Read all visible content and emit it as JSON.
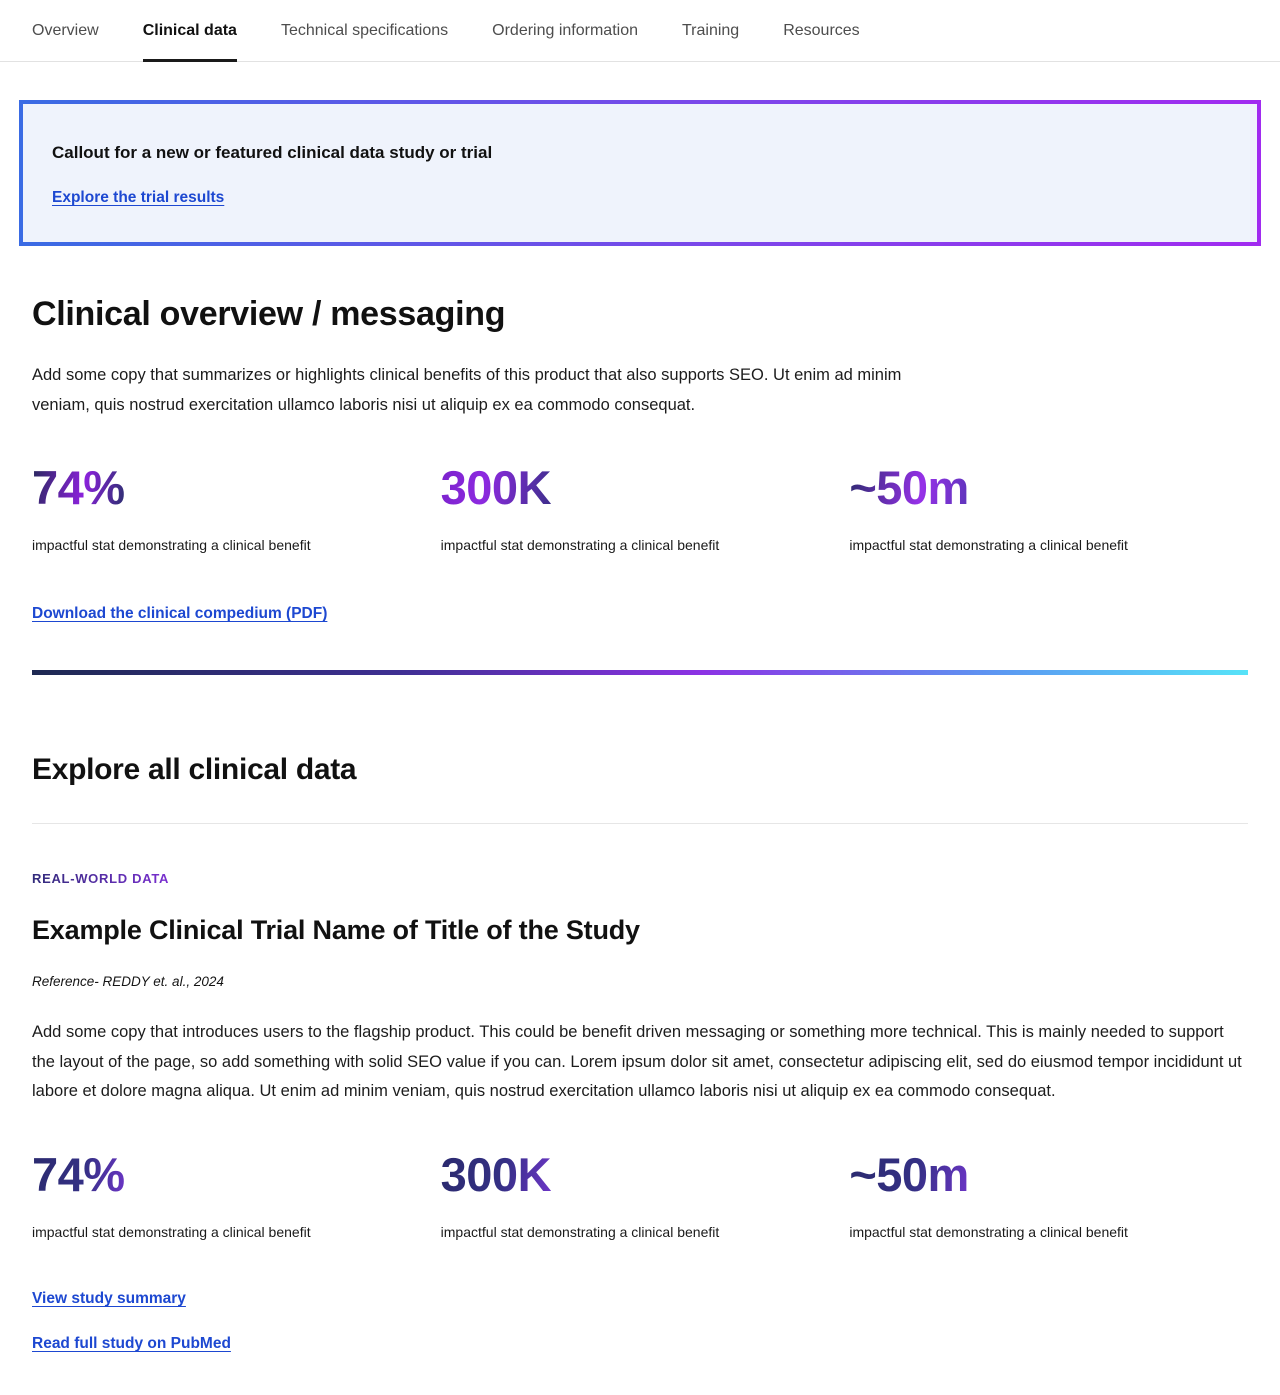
{
  "nav": {
    "tabs": [
      {
        "label": "Overview",
        "active": false
      },
      {
        "label": "Clinical data",
        "active": true
      },
      {
        "label": "Technical specifications",
        "active": false
      },
      {
        "label": "Ordering information",
        "active": false
      },
      {
        "label": "Training",
        "active": false
      },
      {
        "label": "Resources",
        "active": false
      }
    ]
  },
  "callout": {
    "title": "Callout for a new or featured clinical data study or trial",
    "link_label": "Explore the trial results"
  },
  "overview_section": {
    "heading": "Clinical overview / messaging",
    "body": "Add some copy that summarizes or highlights clinical benefits of this product that also supports SEO. Ut enim ad minim veniam, quis nostrud exercitation ullamco laboris nisi ut aliquip ex ea commodo consequat.",
    "stats": [
      {
        "value": "74%",
        "caption": "impactful stat demonstrating a clinical benefit"
      },
      {
        "value": "300K",
        "caption": "impactful stat demonstrating a clinical benefit"
      },
      {
        "value": "~50m",
        "caption": "impactful stat demonstrating a clinical benefit"
      }
    ],
    "download_link_label": "Download the clinical compedium (PDF)"
  },
  "explore_section": {
    "heading": "Explore all clinical data",
    "eyebrow": "REAL-WORLD DATA",
    "study_title": "Example Clinical Trial Name of Title of the Study",
    "reference": "Reference- REDDY et. al., 2024",
    "body": "Add some copy that introduces users to the flagship product. This could be benefit driven messaging or something more technical. This is mainly needed to support the layout of the page, so add something with solid SEO value if you can.  Lorem ipsum dolor sit amet, consectetur adipiscing elit, sed do eiusmod tempor incididunt ut labore et dolore magna aliqua. Ut enim ad minim veniam, quis nostrud exercitation ullamco laboris nisi ut aliquip ex ea commodo consequat.",
    "stats": [
      {
        "value": "74%",
        "caption": "impactful stat demonstrating a clinical benefit"
      },
      {
        "value": "300K",
        "caption": "impactful stat demonstrating a clinical benefit"
      },
      {
        "value": "~50m",
        "caption": "impactful stat demonstrating a clinical benefit"
      }
    ],
    "links": [
      {
        "label": "View study summary"
      },
      {
        "label": "Read full study on PubMed"
      }
    ]
  },
  "colors": {
    "link_blue": "#1d48d1",
    "callout_background": "#eff3fc",
    "callout_border_start": "#3a6be4",
    "callout_border_end": "#a12bf0",
    "stat_gradient_indigo": "#2f2766",
    "stat_gradient_purple": "#8a22da",
    "divider_gradient": [
      "#1e2952",
      "#3e2f92",
      "#8c32e4",
      "#5b9af2",
      "#57e3f8"
    ],
    "active_tab_underline": "#1a1a1a"
  }
}
